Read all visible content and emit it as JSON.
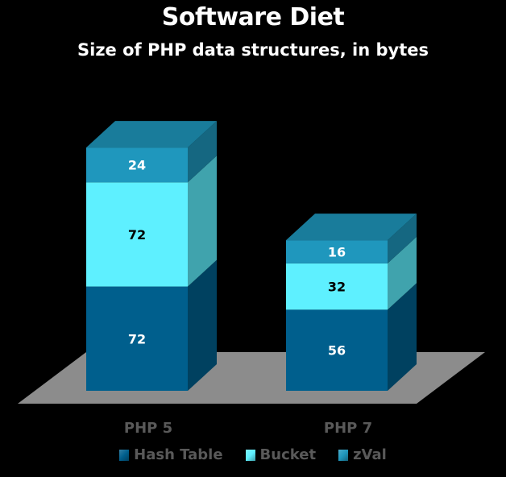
{
  "chart_data": {
    "type": "bar",
    "stacked": true,
    "three_d": true,
    "title": "Software Diet",
    "subtitle": "Size of PHP data structures, in bytes",
    "categories": [
      "PHP 5",
      "PHP 7"
    ],
    "series": [
      {
        "name": "Hash Table",
        "values": [
          72,
          56
        ],
        "color": "#005f8d",
        "label_color": "#ffffff"
      },
      {
        "name": "Bucket",
        "values": [
          72,
          32
        ],
        "color": "#5ef0ff",
        "label_color": "#000000"
      },
      {
        "name": "zVal",
        "values": [
          24,
          16
        ],
        "color": "#1f97bd",
        "label_color": "#ffffff"
      }
    ],
    "legend_position": "bottom",
    "grid": false,
    "floor_color": "#8c8c8c",
    "category_label_color": "#595959"
  }
}
